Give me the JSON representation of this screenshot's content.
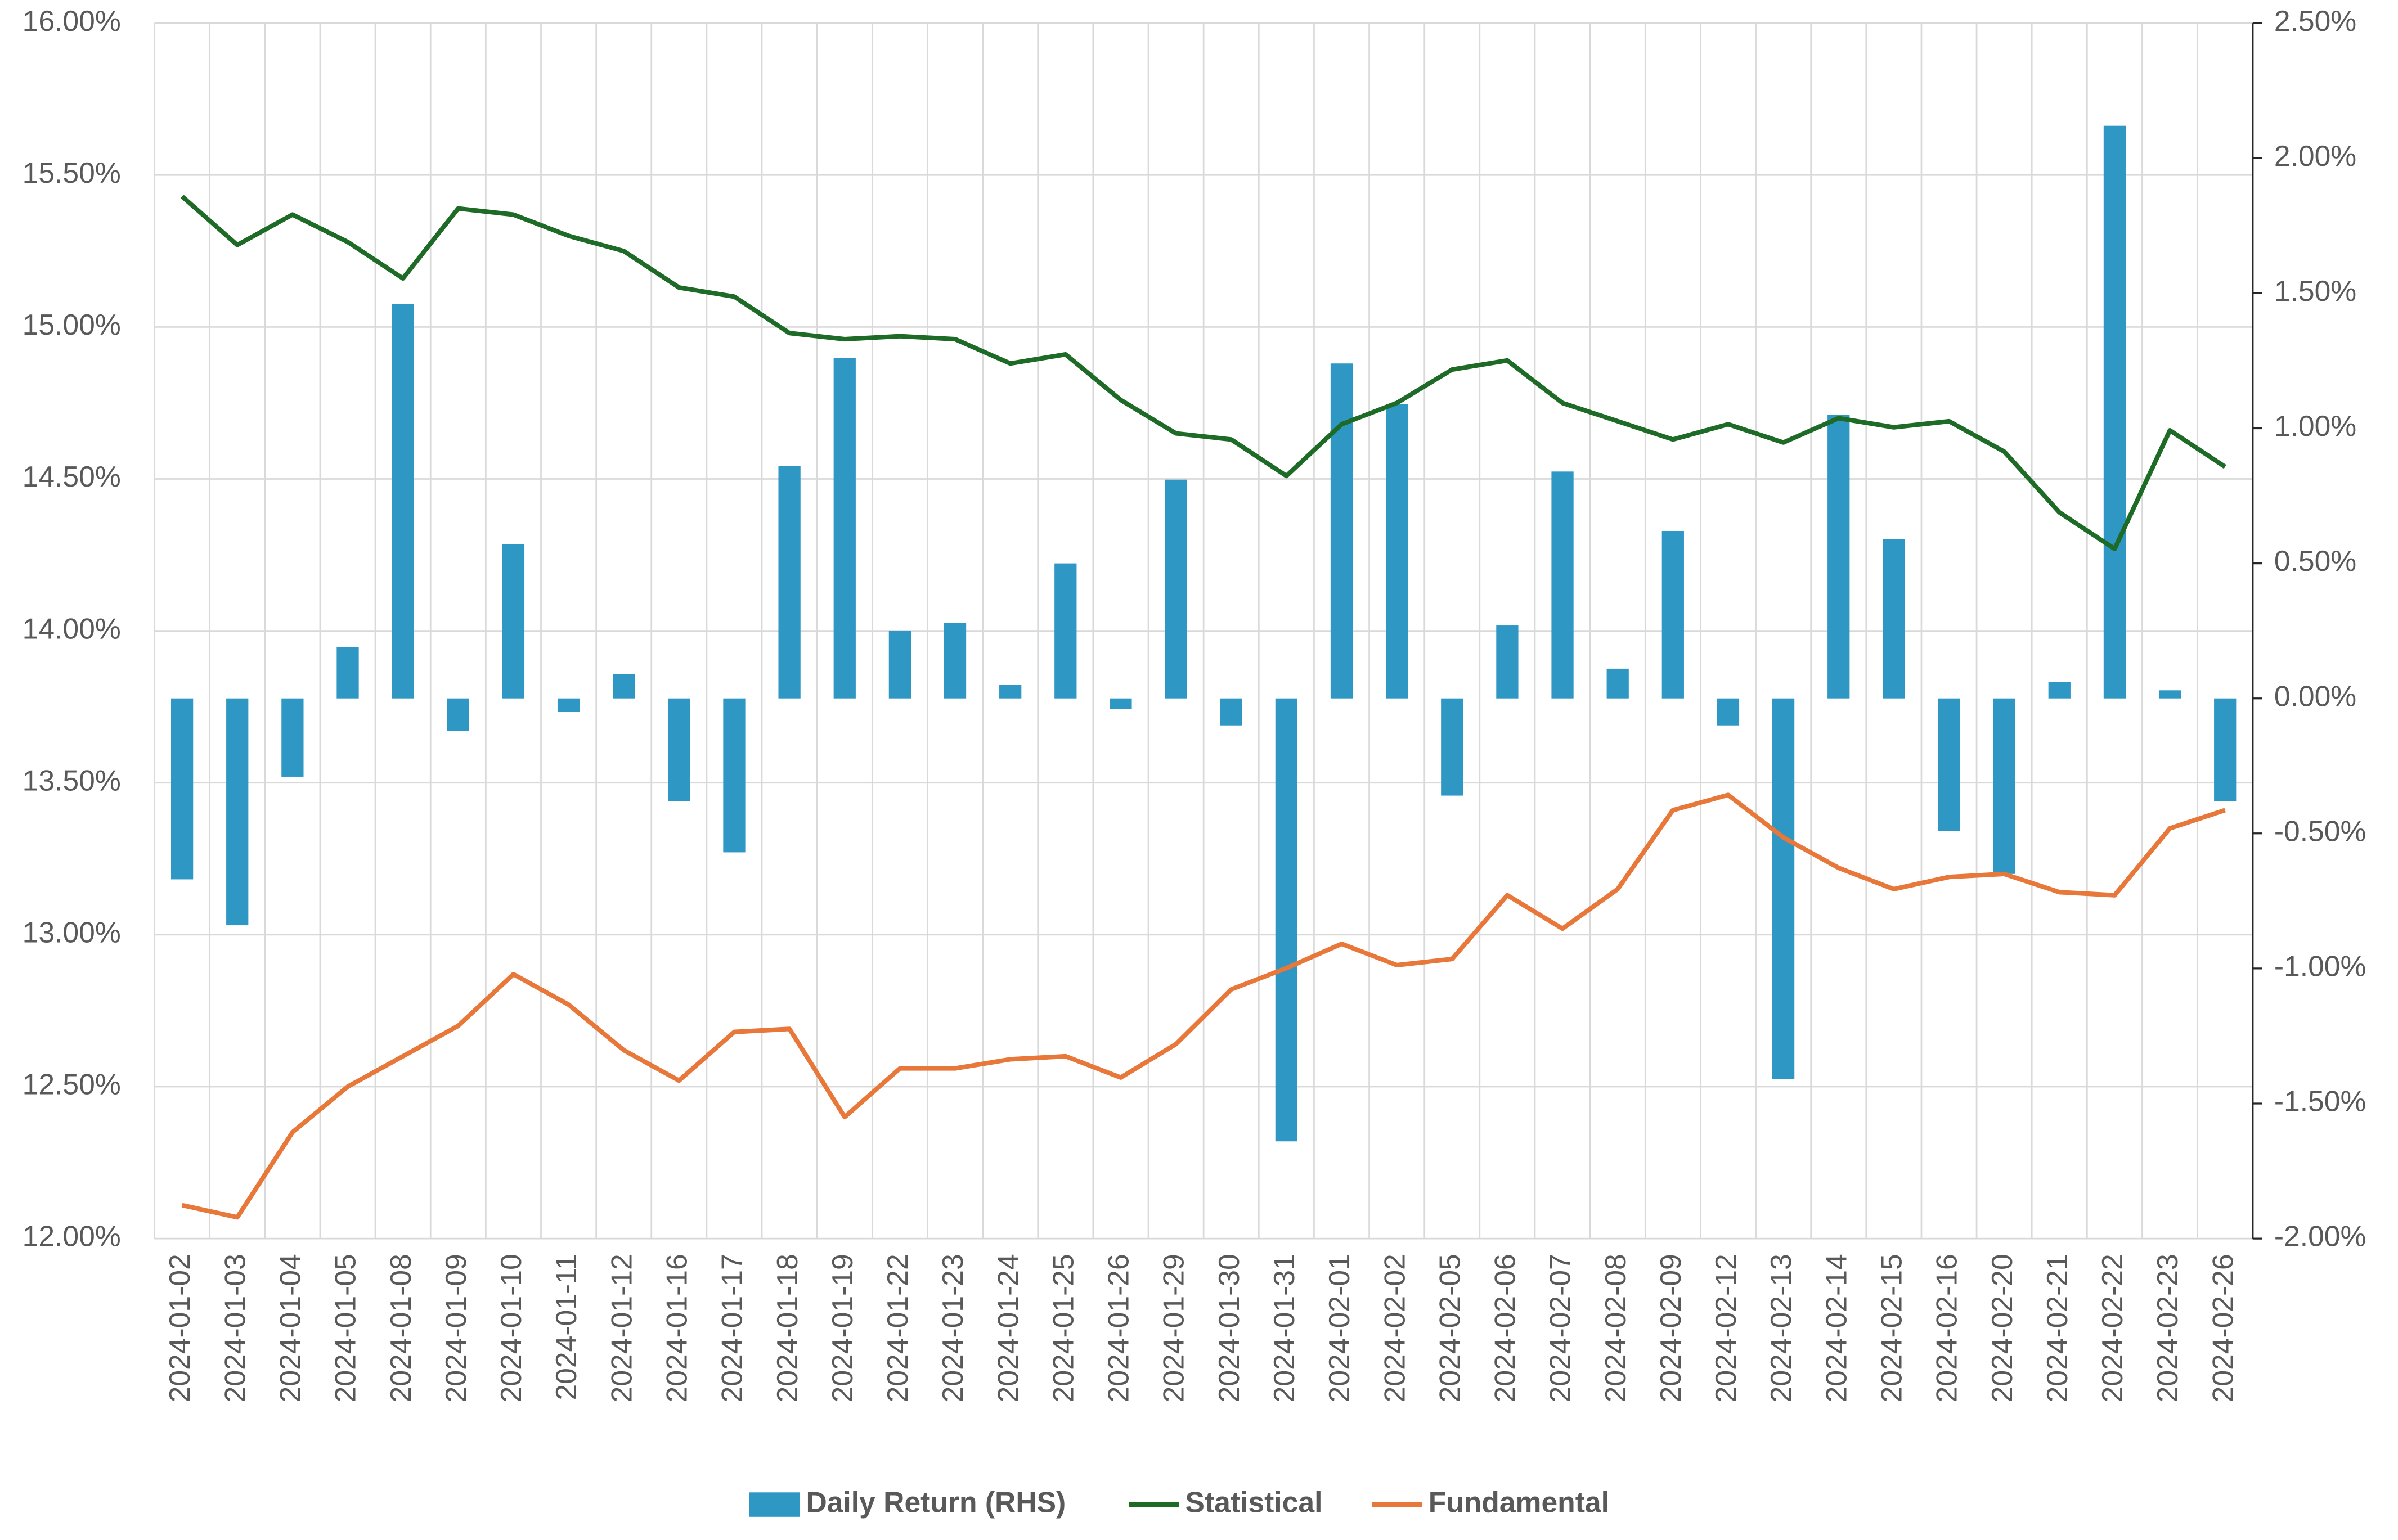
{
  "chart_data": {
    "type": "bar-line",
    "categories": [
      "2024-01-02",
      "2024-01-03",
      "2024-01-04",
      "2024-01-05",
      "2024-01-08",
      "2024-01-09",
      "2024-01-10",
      "2024-01-11",
      "2024-01-12",
      "2024-01-16",
      "2024-01-17",
      "2024-01-18",
      "2024-01-19",
      "2024-01-22",
      "2024-01-23",
      "2024-01-24",
      "2024-01-25",
      "2024-01-26",
      "2024-01-29",
      "2024-01-30",
      "2024-01-31",
      "2024-02-01",
      "2024-02-02",
      "2024-02-05",
      "2024-02-06",
      "2024-02-07",
      "2024-02-08",
      "2024-02-09",
      "2024-02-12",
      "2024-02-13",
      "2024-02-14",
      "2024-02-15",
      "2024-02-16",
      "2024-02-20",
      "2024-02-21",
      "2024-02-22",
      "2024-02-23",
      "2024-02-26"
    ],
    "series": [
      {
        "name": "Daily Return (RHS)",
        "type": "bar",
        "axis": "y2",
        "color": "#2e97c4",
        "values": [
          -0.67,
          -0.84,
          -0.29,
          0.19,
          1.46,
          -0.12,
          0.57,
          -0.05,
          0.09,
          -0.38,
          -0.57,
          0.86,
          1.26,
          0.25,
          0.28,
          0.05,
          0.5,
          -0.04,
          0.81,
          -0.1,
          -1.64,
          1.24,
          1.09,
          -0.36,
          0.27,
          0.84,
          0.11,
          0.62,
          -0.1,
          -1.41,
          1.05,
          0.59,
          -0.49,
          -0.65,
          0.06,
          2.12,
          0.03,
          -0.38
        ]
      },
      {
        "name": "Statistical",
        "type": "line",
        "color": "#1e6b27",
        "values": [
          15.43,
          15.27,
          15.37,
          15.28,
          15.16,
          15.39,
          15.37,
          15.3,
          15.25,
          15.13,
          15.1,
          14.98,
          14.96,
          14.97,
          14.96,
          14.88,
          14.91,
          14.76,
          14.65,
          14.63,
          14.51,
          14.68,
          14.75,
          14.86,
          14.89,
          14.75,
          14.69,
          14.63,
          14.68,
          14.62,
          14.7,
          14.67,
          14.69,
          14.59,
          14.39,
          14.27,
          14.66,
          14.54
        ]
      },
      {
        "name": "Fundamental",
        "type": "line",
        "color": "#e8773a",
        "values": [
          12.11,
          12.07,
          12.35,
          12.5,
          12.6,
          12.7,
          12.87,
          12.77,
          12.62,
          12.52,
          12.68,
          12.69,
          12.4,
          12.56,
          12.56,
          12.59,
          12.6,
          12.53,
          12.64,
          12.82,
          12.89,
          12.97,
          12.9,
          12.92,
          13.13,
          13.02,
          13.15,
          13.41,
          13.46,
          13.32,
          13.22,
          13.15,
          13.19,
          13.2,
          13.14,
          13.13,
          13.35,
          13.41
        ]
      }
    ],
    "ylim": [
      12,
      16
    ],
    "yticks": [
      {
        "value": 12,
        "label": "12.00%"
      },
      {
        "value": 12.5,
        "label": "12.50%"
      },
      {
        "value": 13,
        "label": "13.00%"
      },
      {
        "value": 13.5,
        "label": "13.50%"
      },
      {
        "value": 14,
        "label": "14.00%"
      },
      {
        "value": 14.5,
        "label": "14.50%"
      },
      {
        "value": 15,
        "label": "15.00%"
      },
      {
        "value": 15.5,
        "label": "15.50%"
      },
      {
        "value": 16,
        "label": "16.00%"
      }
    ],
    "y2lim": [
      -2,
      2.5
    ],
    "y2ticks": [
      {
        "value": -2,
        "label": "-2.00%"
      },
      {
        "value": -1.5,
        "label": "-1.50%"
      },
      {
        "value": -1,
        "label": "-1.00%"
      },
      {
        "value": -0.5,
        "label": "-0.50%"
      },
      {
        "value": 0,
        "label": "0.00%"
      },
      {
        "value": 0.5,
        "label": "0.50%"
      },
      {
        "value": 1,
        "label": "1.00%"
      },
      {
        "value": 1.5,
        "label": "1.50%"
      },
      {
        "value": 2,
        "label": "2.00%"
      },
      {
        "value": 2.5,
        "label": "2.50%"
      }
    ],
    "grid": true,
    "legend": "bottom"
  }
}
